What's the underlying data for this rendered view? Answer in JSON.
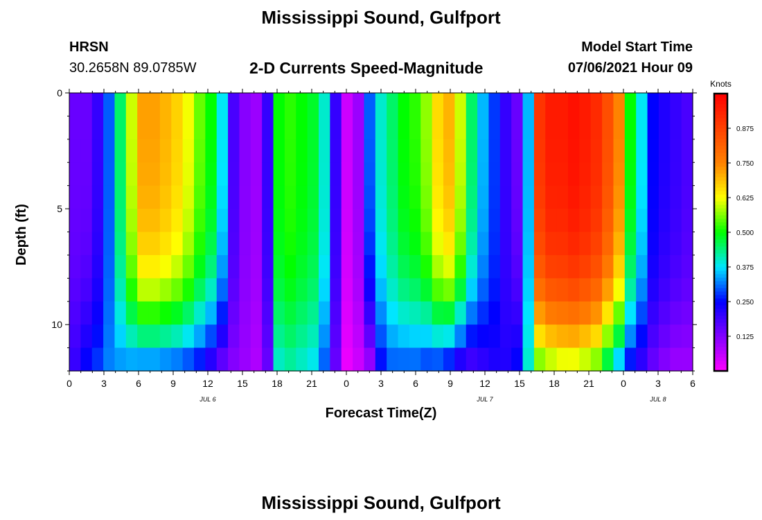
{
  "title": "Mississippi Sound, Gulfport",
  "footer_title": "Mississippi Sound, Gulfport",
  "station": {
    "id": "HRSN",
    "coords": "30.2658N  89.0785W"
  },
  "model": {
    "label": "Model Start Time",
    "time": "07/06/2021 Hour 09"
  },
  "subtitle": "2-D Currents Speed-Magnitude",
  "chart_data": {
    "type": "heatmap",
    "title": "2-D Currents Speed-Magnitude",
    "xlabel": "Forecast Time(Z)",
    "ylabel": "Depth (ft)",
    "x_hours_range": [
      0,
      54
    ],
    "x_tick_hours": [
      0,
      3,
      6,
      9,
      12,
      15,
      18,
      21,
      24,
      27,
      30,
      33,
      36,
      39,
      42,
      45,
      48,
      51,
      54
    ],
    "x_tick_labels": [
      "0",
      "3",
      "6",
      "9",
      "12",
      "15",
      "18",
      "21",
      "0",
      "3",
      "6",
      "9",
      "12",
      "15",
      "18",
      "21",
      "0",
      "3",
      "6"
    ],
    "date_labels": [
      {
        "text": "JUL 6",
        "hour": 12
      },
      {
        "text": "JUL 7",
        "hour": 36
      },
      {
        "text": "JUL 8",
        "hour": 51
      }
    ],
    "y_range_ft": [
      0,
      12
    ],
    "y_tick_values": [
      0,
      5,
      10
    ],
    "y_tick_labels": [
      "0",
      "5",
      "10"
    ],
    "colorbar": {
      "title": "Knots",
      "range": [
        0,
        1.0
      ],
      "tick_values": [
        0.125,
        0.25,
        0.375,
        0.5,
        0.625,
        0.75,
        0.875
      ],
      "tick_labels": [
        "0.125",
        "0.250",
        "0.375",
        "0.500",
        "0.625",
        "0.750",
        "0.875"
      ]
    },
    "surface_speed_knots": [
      0.15,
      0.15,
      0.2,
      0.3,
      0.45,
      0.6,
      0.72,
      0.72,
      0.7,
      0.67,
      0.62,
      0.55,
      0.5,
      0.38,
      0.18,
      0.12,
      0.1,
      0.2,
      0.5,
      0.52,
      0.5,
      0.48,
      0.4,
      0.2,
      0.05,
      0.1,
      0.3,
      0.4,
      0.45,
      0.5,
      0.52,
      0.57,
      0.66,
      0.7,
      0.6,
      0.45,
      0.35,
      0.28,
      0.2,
      0.15,
      0.35,
      0.9,
      0.95,
      0.95,
      0.97,
      0.95,
      0.92,
      0.85,
      0.75,
      0.5,
      0.38,
      0.25,
      0.22,
      0.2,
      0.18
    ],
    "bottom_speed_knots": [
      0.2,
      0.25,
      0.28,
      0.32,
      0.33,
      0.33,
      0.32,
      0.32,
      0.31,
      0.3,
      0.28,
      0.25,
      0.2,
      0.15,
      0.12,
      0.1,
      0.08,
      0.15,
      0.4,
      0.42,
      0.4,
      0.38,
      0.3,
      0.15,
      0.02,
      0.05,
      0.1,
      0.25,
      0.3,
      0.3,
      0.3,
      0.28,
      0.28,
      0.25,
      0.2,
      0.18,
      0.2,
      0.22,
      0.22,
      0.25,
      0.4,
      0.55,
      0.58,
      0.6,
      0.6,
      0.58,
      0.55,
      0.45,
      0.35,
      0.25,
      0.2,
      0.15,
      0.12,
      0.1,
      0.1
    ],
    "depth_profile_levels_ft": [
      0.5,
      1.5,
      2.5,
      3.5,
      4.5,
      5.5,
      6.5,
      7.5,
      8.5,
      9.5,
      10.5,
      11.5
    ],
    "depth_profile_weight": [
      1.0,
      1.0,
      0.99,
      0.98,
      0.96,
      0.93,
      0.88,
      0.8,
      0.68,
      0.5,
      0.3,
      0.05
    ]
  }
}
